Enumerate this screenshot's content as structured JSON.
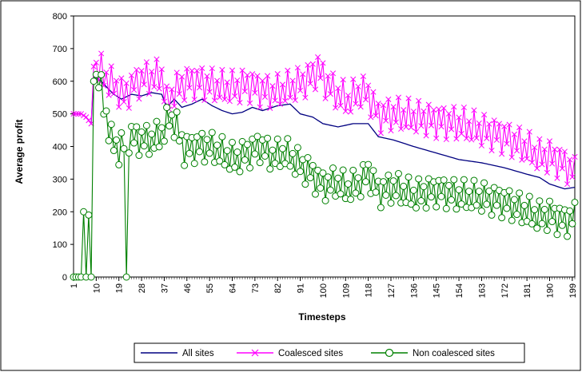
{
  "chart_data": {
    "type": "line",
    "title": "",
    "xlabel": "Timesteps",
    "ylabel": "Average profit",
    "ylim": [
      0,
      800
    ],
    "yticks": [
      0,
      100,
      200,
      300,
      400,
      500,
      600,
      700,
      800
    ],
    "xlim": [
      1,
      200
    ],
    "xticks": [
      1,
      10,
      19,
      28,
      37,
      46,
      55,
      64,
      73,
      82,
      91,
      100,
      109,
      118,
      127,
      136,
      145,
      154,
      163,
      172,
      181,
      190,
      199
    ],
    "grid": false,
    "legend": "bottom",
    "series": [
      {
        "name": "All sites",
        "color": "#000080",
        "marker": "none",
        "keypoints": [
          [
            1,
            500
          ],
          [
            4,
            500
          ],
          [
            6,
            490
          ],
          [
            8,
            470
          ],
          [
            9,
            615
          ],
          [
            12,
            600
          ],
          [
            15,
            575
          ],
          [
            17,
            560
          ],
          [
            20,
            545
          ],
          [
            24,
            560
          ],
          [
            28,
            555
          ],
          [
            32,
            565
          ],
          [
            36,
            560
          ],
          [
            38,
            520
          ],
          [
            41,
            545
          ],
          [
            44,
            520
          ],
          [
            48,
            530
          ],
          [
            52,
            545
          ],
          [
            56,
            525
          ],
          [
            60,
            510
          ],
          [
            64,
            500
          ],
          [
            68,
            505
          ],
          [
            72,
            520
          ],
          [
            76,
            510
          ],
          [
            82,
            525
          ],
          [
            87,
            530
          ],
          [
            91,
            500
          ],
          [
            96,
            490
          ],
          [
            100,
            470
          ],
          [
            106,
            460
          ],
          [
            112,
            470
          ],
          [
            118,
            470
          ],
          [
            122,
            430
          ],
          [
            128,
            420
          ],
          [
            136,
            400
          ],
          [
            145,
            380
          ],
          [
            154,
            360
          ],
          [
            163,
            350
          ],
          [
            172,
            335
          ],
          [
            181,
            315
          ],
          [
            186,
            305
          ],
          [
            190,
            285
          ],
          [
            196,
            270
          ],
          [
            200,
            275
          ]
        ]
      },
      {
        "name": "Coalesced sites",
        "color": "#ff00ff",
        "marker": "x",
        "keypoints": [
          [
            1,
            500
          ],
          [
            4,
            500
          ],
          [
            6,
            490
          ],
          [
            8,
            470
          ],
          [
            9,
            645
          ],
          [
            12,
            630
          ],
          [
            15,
            600
          ],
          [
            18,
            580
          ],
          [
            21,
            555
          ],
          [
            25,
            590
          ],
          [
            29,
            610
          ],
          [
            33,
            610
          ],
          [
            36,
            620
          ],
          [
            38,
            530
          ],
          [
            41,
            570
          ],
          [
            45,
            595
          ],
          [
            50,
            600
          ],
          [
            55,
            590
          ],
          [
            60,
            580
          ],
          [
            65,
            580
          ],
          [
            70,
            590
          ],
          [
            75,
            575
          ],
          [
            80,
            565
          ],
          [
            85,
            575
          ],
          [
            90,
            590
          ],
          [
            95,
            610
          ],
          [
            98,
            640
          ],
          [
            101,
            600
          ],
          [
            105,
            565
          ],
          [
            110,
            540
          ],
          [
            115,
            570
          ],
          [
            118,
            560
          ],
          [
            122,
            495
          ],
          [
            128,
            500
          ],
          [
            136,
            490
          ],
          [
            145,
            480
          ],
          [
            154,
            470
          ],
          [
            163,
            450
          ],
          [
            172,
            430
          ],
          [
            181,
            395
          ],
          [
            186,
            370
          ],
          [
            190,
            370
          ],
          [
            196,
            345
          ],
          [
            200,
            320
          ]
        ],
        "amplitude": 55
      },
      {
        "name": "Non coalesced sites",
        "color": "#008000",
        "marker": "circle",
        "keypoints": [
          [
            1,
            0
          ],
          [
            2,
            0
          ],
          [
            3,
            0
          ],
          [
            4,
            0
          ],
          [
            5,
            200
          ],
          [
            6,
            0
          ],
          [
            7,
            190
          ],
          [
            8,
            0
          ],
          [
            9,
            600
          ],
          [
            11,
            610
          ],
          [
            13,
            530
          ],
          [
            16,
            420
          ],
          [
            19,
            390
          ],
          [
            23,
            430
          ],
          [
            28,
            420
          ],
          [
            33,
            420
          ],
          [
            37,
            450
          ],
          [
            39,
            490
          ],
          [
            42,
            460
          ],
          [
            45,
            390
          ],
          [
            50,
            400
          ],
          [
            55,
            400
          ],
          [
            60,
            380
          ],
          [
            65,
            360
          ],
          [
            70,
            380
          ],
          [
            75,
            400
          ],
          [
            80,
            370
          ],
          [
            85,
            380
          ],
          [
            90,
            350
          ],
          [
            95,
            320
          ],
          [
            100,
            280
          ],
          [
            105,
            290
          ],
          [
            110,
            270
          ],
          [
            115,
            290
          ],
          [
            118,
            320
          ],
          [
            122,
            260
          ],
          [
            128,
            275
          ],
          [
            136,
            250
          ],
          [
            145,
            265
          ],
          [
            154,
            250
          ],
          [
            163,
            245
          ],
          [
            172,
            230
          ],
          [
            181,
            200
          ],
          [
            186,
            185
          ],
          [
            190,
            190
          ],
          [
            196,
            170
          ],
          [
            200,
            185
          ]
        ],
        "amplitude": 50,
        "dips": [
          [
            5,
            200
          ],
          [
            7,
            190
          ],
          [
            22,
            0
          ]
        ]
      }
    ]
  }
}
